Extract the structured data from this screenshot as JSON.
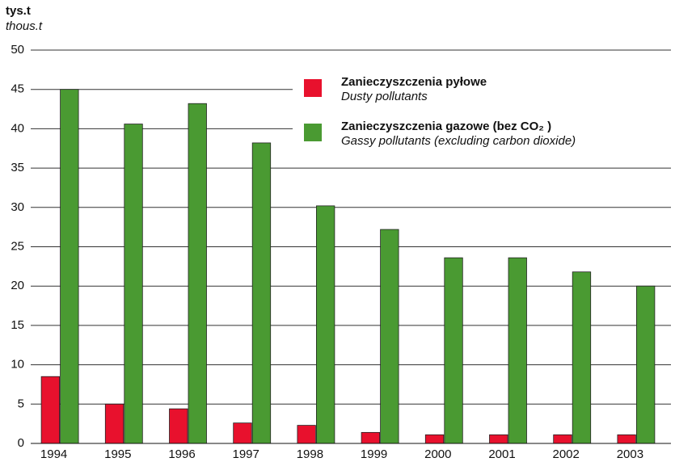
{
  "chart_data": {
    "type": "bar",
    "ylabel": "tys.t",
    "ylabel_en": "thous.t",
    "categories": [
      "1994",
      "1995",
      "1996",
      "1997",
      "1998",
      "1999",
      "2000",
      "2001",
      "2002",
      "2003"
    ],
    "series": [
      {
        "name": "Zanieczyszczenia pyłowe",
        "name_en": "Dusty pollutants",
        "color": "#e8112d",
        "values": [
          8.5,
          5,
          4.4,
          2.6,
          2.3,
          1.4,
          1.1,
          1.1,
          1.1,
          1.1
        ]
      },
      {
        "name": "Zanieczyszczenia gazowe (bez CO₂ )",
        "name_en": "Gassy pollutants (excluding carbon dioxide)",
        "color": "#4a9a32",
        "values": [
          45,
          40.6,
          43.2,
          38.2,
          30.2,
          27.2,
          23.6,
          23.6,
          21.8,
          20
        ]
      }
    ],
    "ylim": [
      0,
      50
    ],
    "yticks": [
      0,
      5,
      10,
      15,
      20,
      25,
      30,
      35,
      40,
      45,
      50
    ],
    "grid": true
  }
}
